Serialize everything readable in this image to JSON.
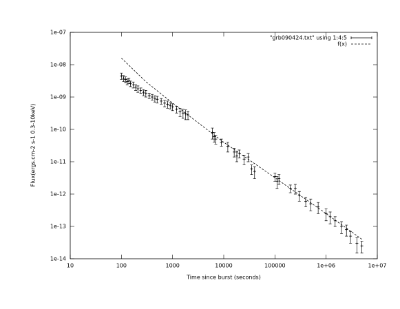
{
  "chart_data": {
    "type": "scatter",
    "xlabel": "Time since burst (seconds)",
    "ylabel": "Flux(ergs.cm-2 s-1 0.3-10keV)",
    "log_x": true,
    "log_y": true,
    "legend": "top-right",
    "xlim": [
      10,
      10000000
    ],
    "ylim": [
      1e-14,
      1e-07
    ],
    "xticks": [
      10,
      100,
      1000,
      10000,
      100000,
      {
        "value": 1000000,
        "label": "1e+06"
      },
      {
        "value": 10000000,
        "label": "1e+07"
      }
    ],
    "yticks": [
      {
        "value": 1e-14,
        "label": "1e-14"
      },
      {
        "value": 1e-13,
        "label": "1e-13"
      },
      {
        "value": 1e-12,
        "label": "1e-12"
      },
      {
        "value": 1e-11,
        "label": "1e-11"
      },
      {
        "value": 1e-10,
        "label": "1e-10"
      },
      {
        "value": 1e-09,
        "label": "1e-09"
      },
      {
        "value": 1e-08,
        "label": "1e-08"
      },
      {
        "value": 1e-07,
        "label": "1e-07"
      }
    ],
    "series": [
      {
        "name": "\"grb090424.txt\" using 1:4:5",
        "color": "#000000",
        "style": "errorbars",
        "x": [
          100,
          110,
          120,
          130,
          140,
          150,
          170,
          190,
          210,
          240,
          270,
          300,
          350,
          400,
          450,
          500,
          600,
          700,
          800,
          900,
          1000,
          1200,
          1400,
          1600,
          1800,
          2000,
          6000,
          6500,
          7000,
          9000,
          12000,
          16000,
          18000,
          20000,
          25000,
          30000,
          35000,
          40000,
          100000,
          110000,
          120000,
          200000,
          250000,
          300000,
          400000,
          500000,
          700000,
          1000000,
          1200000,
          1500000,
          2000000,
          2500000,
          3000000,
          4000000,
          5000000
        ],
        "values": [
          4.5e-09,
          3.8e-09,
          3.5e-09,
          3e-09,
          3.2e-09,
          2.6e-09,
          2.4e-09,
          2e-09,
          1.8e-09,
          1.6e-09,
          1.4e-09,
          1.3e-09,
          1.1e-09,
          1e-09,
          9e-10,
          8.5e-10,
          7.5e-10,
          6.5e-10,
          6e-10,
          5.5e-10,
          5e-10,
          4.2e-10,
          3.5e-10,
          3.2e-10,
          3e-10,
          2.8e-10,
          8e-11,
          6e-11,
          5e-11,
          4e-11,
          3e-11,
          2e-11,
          1.5e-11,
          1.8e-11,
          1.2e-11,
          1.4e-11,
          6e-12,
          5e-12,
          3.5e-12,
          2.5e-12,
          3e-12,
          1.5e-12,
          1.5e-12,
          9e-13,
          6e-13,
          5e-13,
          4e-13,
          2.5e-13,
          2e-13,
          1.5e-13,
          1e-13,
          8e-14,
          5e-14,
          3e-14,
          2.5e-14
        ],
        "errors": [
          1e-09,
          8e-10,
          7e-10,
          6e-10,
          6e-10,
          5e-10,
          5e-10,
          4e-10,
          4e-10,
          3e-10,
          3e-10,
          3e-10,
          2e-10,
          2e-10,
          2e-10,
          2e-10,
          1.5e-10,
          1.5e-10,
          1.5e-10,
          1.2e-10,
          1.2e-10,
          1e-10,
          1e-10,
          1e-10,
          1e-10,
          8e-11,
          3e-11,
          2e-11,
          1.5e-11,
          1e-11,
          1e-11,
          6e-12,
          5e-12,
          5e-12,
          4e-12,
          4e-12,
          2e-12,
          2e-12,
          1e-12,
          1e-12,
          1e-12,
          4e-13,
          5e-13,
          3e-13,
          2e-13,
          2e-13,
          1.5e-13,
          1e-13,
          8e-14,
          5e-14,
          4e-14,
          3e-14,
          2e-14,
          1.5e-14,
          1e-14
        ]
      },
      {
        "name": "f(x)",
        "color": "#000000",
        "style": "dashed-line",
        "x": [
          100,
          300,
          1000,
          3000,
          10000,
          100000,
          1000000,
          5000000
        ],
        "values": [
          1.6e-08,
          3e-09,
          6.5e-10,
          1.7e-10,
          4e-11,
          3.2e-12,
          2.5e-13,
          4e-14
        ]
      }
    ]
  }
}
